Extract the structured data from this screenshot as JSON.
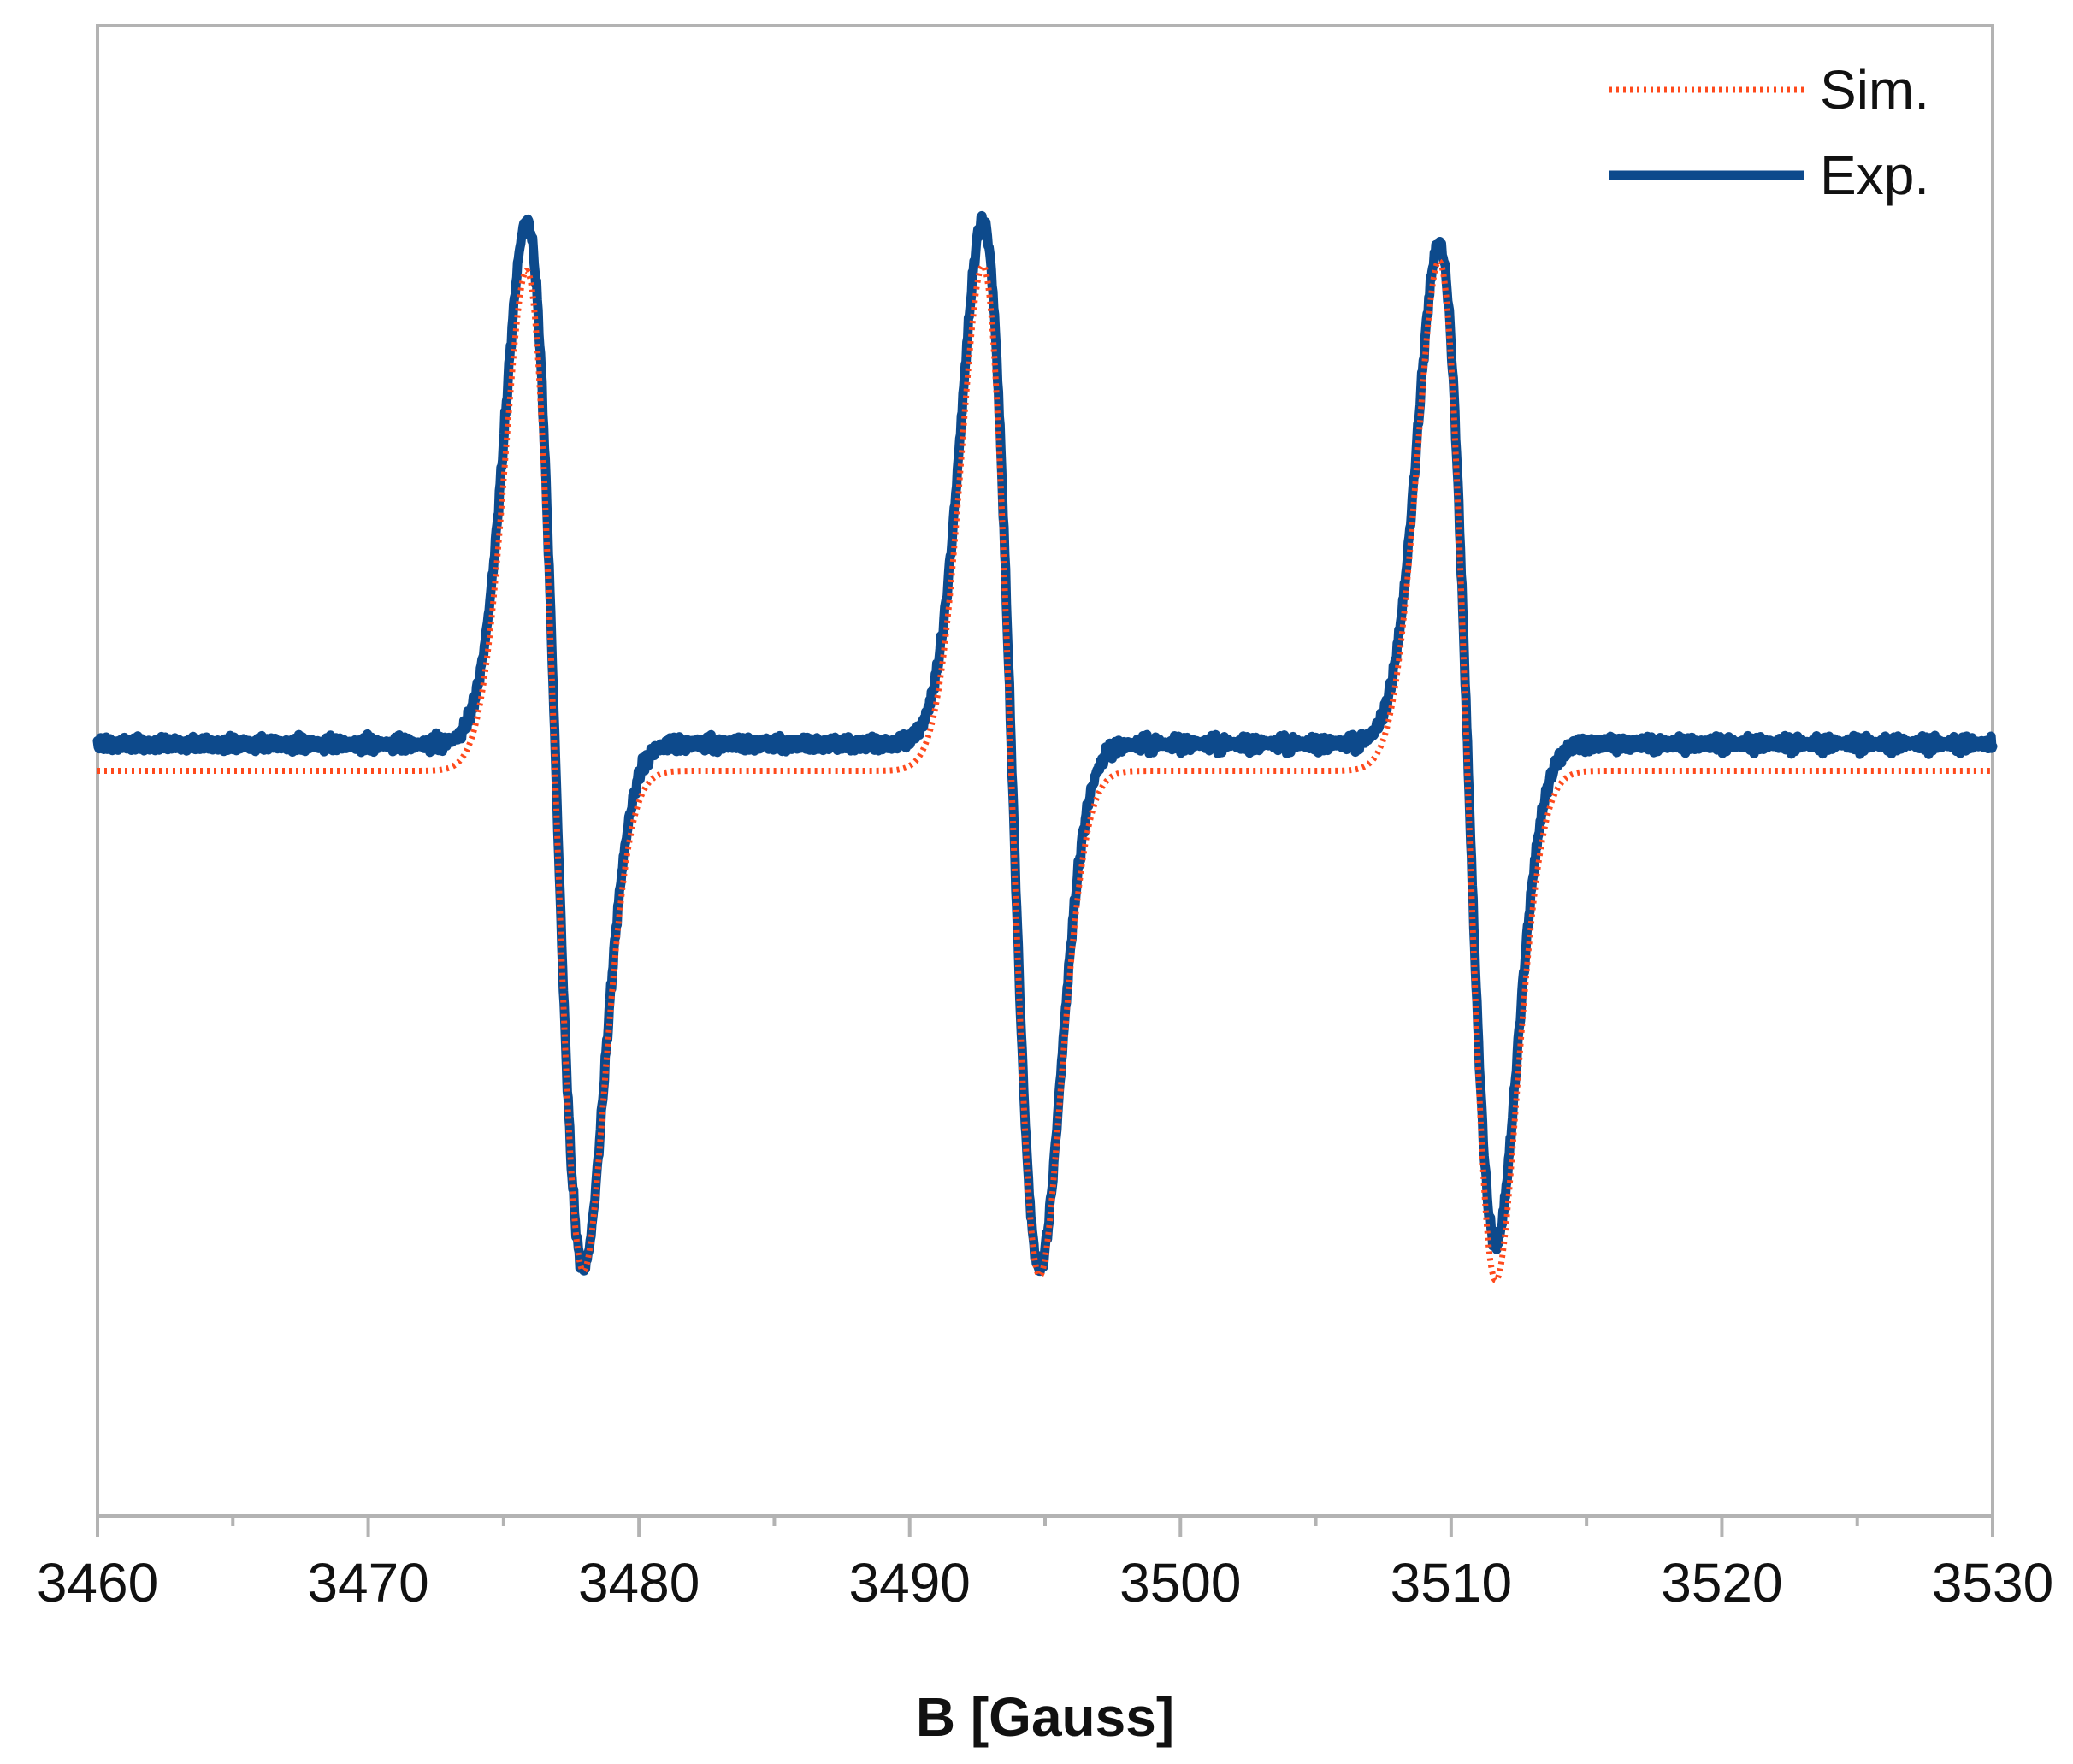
{
  "chart_data": {
    "type": "line",
    "title": "",
    "xlabel": "B [Gauss]",
    "ylabel": "",
    "xlim": [
      3460,
      3530
    ],
    "ylim": [
      -1.25,
      1.25
    ],
    "x_ticks": [
      3460,
      3470,
      3480,
      3490,
      3500,
      3510,
      3520,
      3530
    ],
    "y_ticks_visible": false,
    "grid": false,
    "legend": {
      "position": "top-right"
    },
    "lines": [
      {
        "center": 3476.9,
        "width": 1.05
      },
      {
        "center": 3493.75,
        "width": 1.05
      },
      {
        "center": 3510.6,
        "width": 1.05
      }
    ],
    "series": [
      {
        "name": "Sim.",
        "color": "#ff4a1c",
        "style": "dotted",
        "baseline": 0.0,
        "amplitudes": [
          0.839,
          0.847,
          0.855
        ],
        "peaks": [
          [
            3475.9,
            0.84
          ],
          [
            3492.8,
            0.84
          ],
          [
            3509.6,
            0.85
          ]
        ],
        "troughs": [
          [
            3477.9,
            -0.86
          ],
          [
            3494.8,
            -0.86
          ],
          [
            3511.6,
            -0.86
          ]
        ]
      },
      {
        "name": "Exp.",
        "color": "#0d4a8c",
        "style": "solid",
        "baseline": 0.045,
        "amplitudes": [
          0.878,
          0.878,
          0.838
        ],
        "peaks": [
          [
            3475.9,
            0.92
          ],
          [
            3492.8,
            0.92
          ],
          [
            3509.6,
            0.88
          ]
        ],
        "troughs": [
          [
            3477.9,
            -0.77
          ],
          [
            3494.8,
            -0.8
          ],
          [
            3511.6,
            -0.75
          ]
        ]
      }
    ]
  }
}
